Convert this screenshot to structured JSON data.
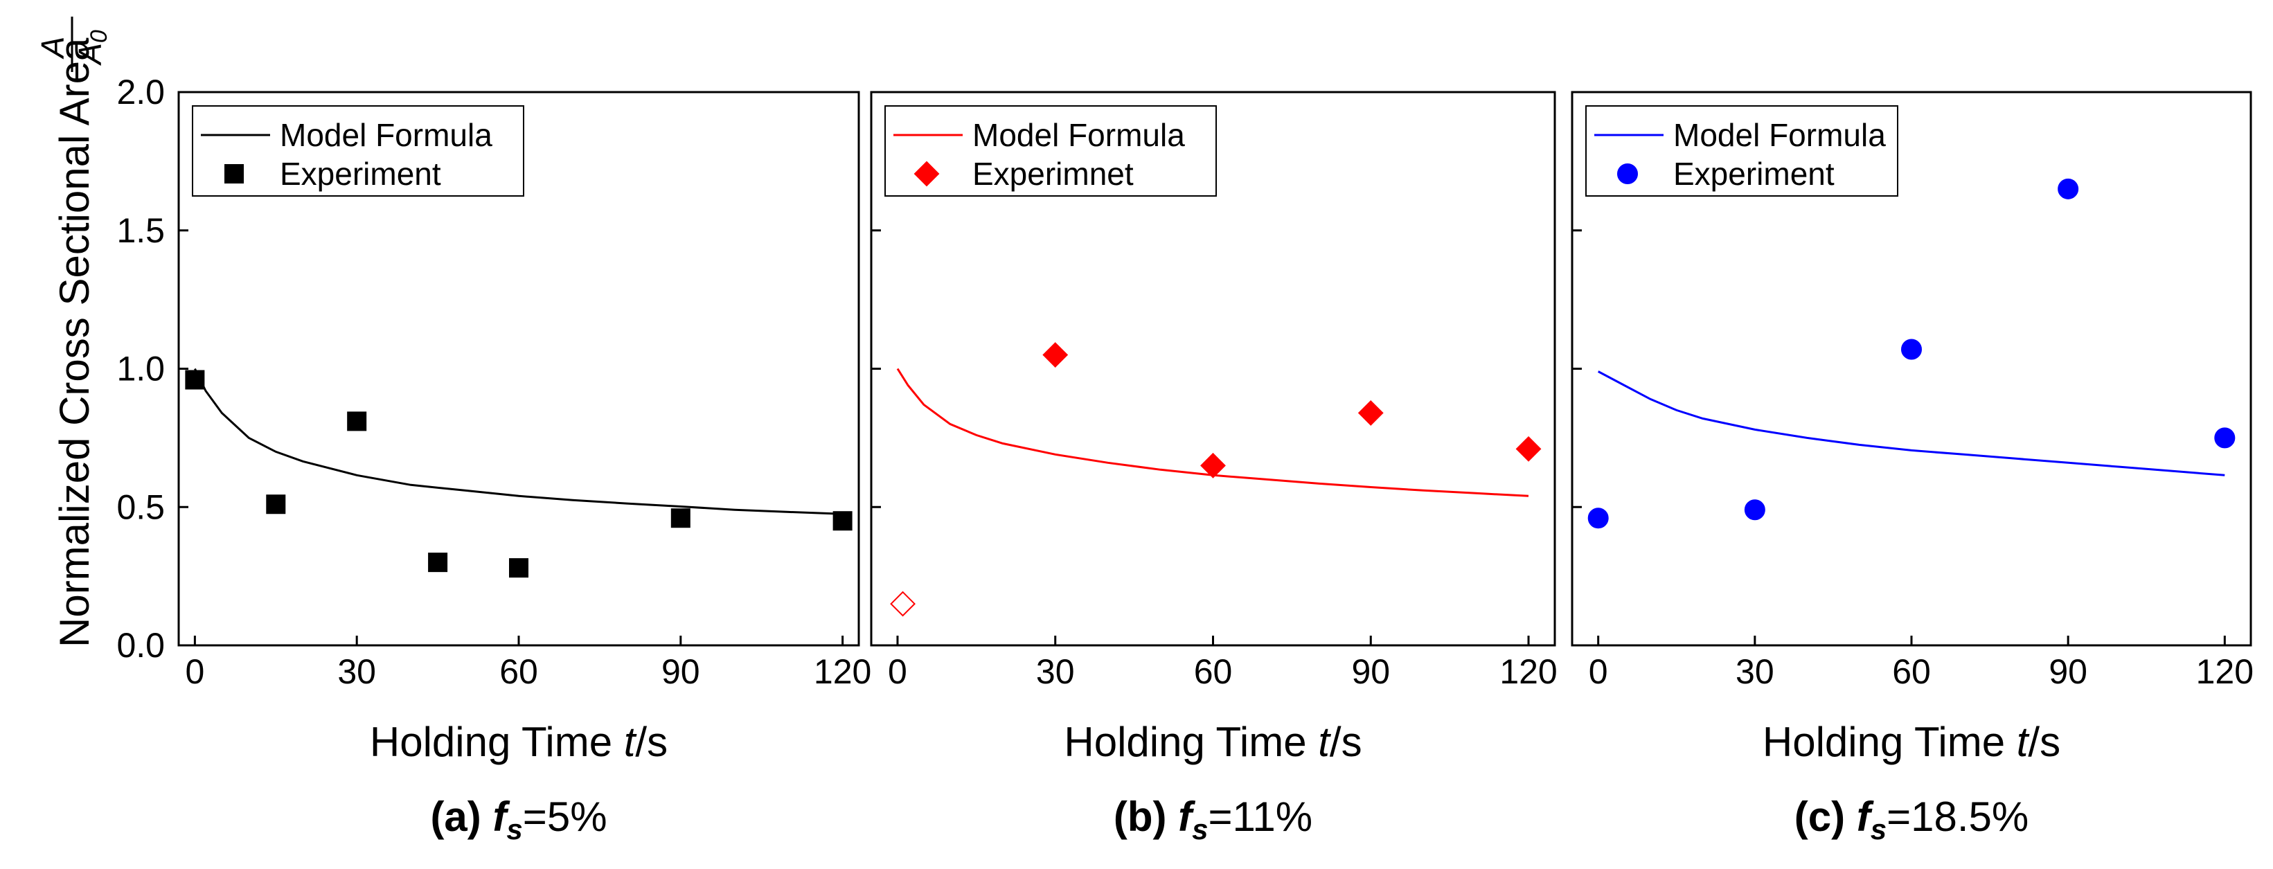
{
  "figure": {
    "ylabel": "Normalized Cross Sectional Area",
    "ylabel_fraction": {
      "numerator": "A",
      "denominator": "A",
      "denominator_subscript": "0"
    },
    "yticks": [
      "0.0",
      "0.5",
      "1.0",
      "1.5",
      "2.0"
    ]
  },
  "chart_data": [
    {
      "type": "scatter",
      "caption": {
        "letter": "(a)",
        "symbol": "f",
        "subscript": "s",
        "value": "=5%"
      },
      "xlabel": {
        "prefix": "Holding Time ",
        "var": "t",
        "suffix": "/s"
      },
      "xlim": [
        -3,
        123
      ],
      "ylim": [
        0,
        2
      ],
      "xticks": [
        0,
        30,
        60,
        90,
        120
      ],
      "yticks": [
        0,
        0.5,
        1.0,
        1.5,
        2.0
      ],
      "color": "#000000",
      "marker": "square",
      "legend": {
        "position": "top-left",
        "line_label": "Model Formula",
        "marker_label": "Experiment"
      },
      "model": {
        "x": [
          0,
          2,
          5,
          10,
          15,
          20,
          30,
          40,
          50,
          60,
          70,
          80,
          90,
          100,
          110,
          120
        ],
        "y": [
          1.0,
          0.92,
          0.84,
          0.75,
          0.7,
          0.665,
          0.615,
          0.58,
          0.56,
          0.54,
          0.525,
          0.513,
          0.502,
          0.49,
          0.482,
          0.475
        ]
      },
      "experiment": {
        "x": [
          0,
          15,
          30,
          45,
          60,
          90,
          120
        ],
        "y": [
          0.96,
          0.51,
          0.81,
          0.3,
          0.28,
          0.46,
          0.45
        ]
      },
      "open_points": {
        "x": [],
        "y": []
      }
    },
    {
      "type": "scatter",
      "caption": {
        "letter": "(b)",
        "symbol": "f",
        "subscript": "s",
        "value": "=11%"
      },
      "xlabel": {
        "prefix": "Holding Time ",
        "var": "t",
        "suffix": "/s"
      },
      "xlim": [
        -5,
        125
      ],
      "ylim": [
        0,
        2
      ],
      "xticks": [
        0,
        30,
        60,
        90,
        120
      ],
      "yticks": [
        0,
        0.5,
        1.0,
        1.5,
        2.0
      ],
      "color": "#ff0000",
      "marker": "diamond",
      "legend": {
        "position": "top-left",
        "line_label": "Model Formula",
        "marker_label": "Experimnet"
      },
      "model": {
        "x": [
          0,
          2,
          5,
          10,
          15,
          20,
          30,
          40,
          50,
          60,
          70,
          80,
          90,
          100,
          110,
          120
        ],
        "y": [
          1.0,
          0.94,
          0.87,
          0.8,
          0.76,
          0.73,
          0.69,
          0.66,
          0.635,
          0.615,
          0.6,
          0.585,
          0.572,
          0.56,
          0.55,
          0.54
        ]
      },
      "experiment": {
        "x": [
          30,
          60,
          90,
          120
        ],
        "y": [
          1.05,
          0.65,
          0.84,
          0.71
        ]
      },
      "open_points": {
        "x": [
          1
        ],
        "y": [
          0.15
        ]
      }
    },
    {
      "type": "scatter",
      "caption": {
        "letter": "(c)",
        "symbol": "f",
        "subscript": "s",
        "value": "=18.5%"
      },
      "xlabel": {
        "prefix": "Holding Time ",
        "var": "t",
        "suffix": "/s"
      },
      "xlim": [
        -5,
        125
      ],
      "ylim": [
        0,
        2
      ],
      "xticks": [
        0,
        30,
        60,
        90,
        120
      ],
      "yticks": [
        0,
        0.5,
        1.0,
        1.5,
        2.0
      ],
      "color": "#0000ff",
      "marker": "circle",
      "legend": {
        "position": "top-left",
        "line_label": "Model Formula",
        "marker_label": "Experiment"
      },
      "model": {
        "x": [
          0,
          2,
          5,
          10,
          15,
          20,
          30,
          40,
          50,
          60,
          70,
          80,
          90,
          100,
          110,
          120
        ],
        "y": [
          0.99,
          0.97,
          0.94,
          0.89,
          0.85,
          0.82,
          0.78,
          0.75,
          0.725,
          0.705,
          0.69,
          0.675,
          0.66,
          0.645,
          0.63,
          0.615
        ]
      },
      "experiment": {
        "x": [
          0,
          30,
          60,
          90,
          120
        ],
        "y": [
          0.46,
          0.49,
          1.07,
          1.65,
          0.75
        ]
      },
      "open_points": {
        "x": [],
        "y": []
      }
    }
  ]
}
